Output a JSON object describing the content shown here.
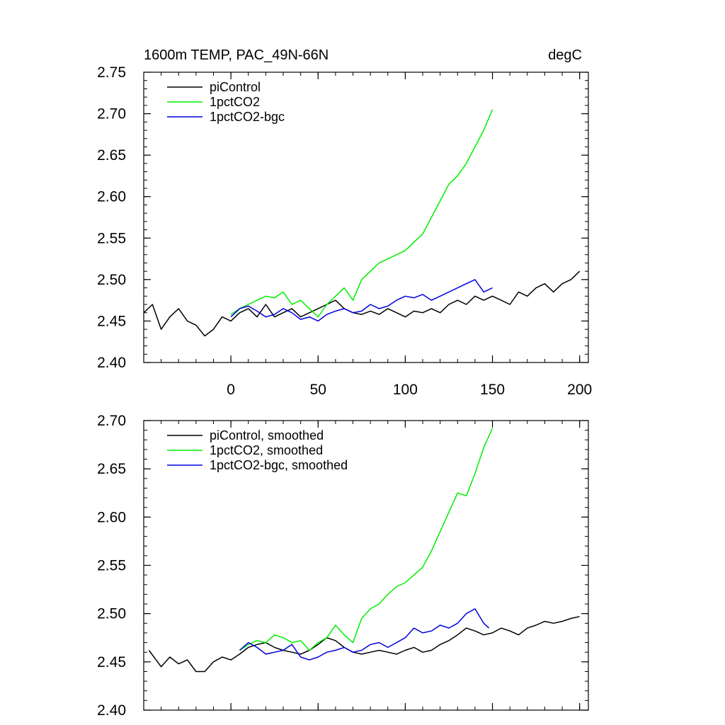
{
  "figure": {
    "title_left": "1600m TEMP, PAC_49N-66N",
    "title_right": "degC"
  },
  "chart_data": [
    {
      "type": "line",
      "title": "1600m TEMP, PAC_49N-66N",
      "units": "degC",
      "xlabel": "",
      "ylabel": "",
      "xlim": [
        -50,
        205
      ],
      "ylim": [
        2.4,
        2.75
      ],
      "x_ticks": [
        0,
        50,
        100,
        150,
        200
      ],
      "x_tick_labels": [
        "0",
        "50",
        "100",
        "150",
        "200"
      ],
      "y_ticks": [
        2.4,
        2.45,
        2.5,
        2.55,
        2.6,
        2.65,
        2.7,
        2.75
      ],
      "y_tick_labels": [
        "2.40",
        "2.45",
        "2.50",
        "2.55",
        "2.60",
        "2.65",
        "2.70",
        "2.75"
      ],
      "legend_position": "top-left",
      "series": [
        {
          "name": "piControl",
          "color": "#000000",
          "x": [
            -50,
            -45,
            -40,
            -35,
            -30,
            -25,
            -20,
            -15,
            -10,
            -5,
            0,
            5,
            10,
            15,
            20,
            25,
            30,
            35,
            40,
            45,
            50,
            55,
            60,
            65,
            70,
            75,
            80,
            85,
            90,
            95,
            100,
            105,
            110,
            115,
            120,
            125,
            130,
            135,
            140,
            145,
            150,
            155,
            160,
            165,
            170,
            175,
            180,
            185,
            190,
            195,
            200
          ],
          "values": [
            2.46,
            2.47,
            2.44,
            2.455,
            2.465,
            2.45,
            2.445,
            2.432,
            2.44,
            2.455,
            2.45,
            2.46,
            2.465,
            2.455,
            2.47,
            2.455,
            2.46,
            2.465,
            2.455,
            2.46,
            2.465,
            2.47,
            2.475,
            2.465,
            2.46,
            2.458,
            2.462,
            2.458,
            2.465,
            2.46,
            2.455,
            2.462,
            2.46,
            2.465,
            2.46,
            2.47,
            2.475,
            2.47,
            2.48,
            2.475,
            2.48,
            2.475,
            2.47,
            2.485,
            2.48,
            2.49,
            2.495,
            2.485,
            2.495,
            2.5,
            2.51
          ]
        },
        {
          "name": "1pctCO2",
          "color": "#00ee00",
          "x": [
            0,
            5,
            10,
            15,
            20,
            25,
            30,
            35,
            40,
            45,
            50,
            55,
            60,
            65,
            70,
            75,
            80,
            85,
            90,
            95,
            100,
            105,
            110,
            115,
            120,
            125,
            130,
            135,
            140,
            145,
            150
          ],
          "values": [
            2.458,
            2.465,
            2.47,
            2.475,
            2.48,
            2.478,
            2.485,
            2.47,
            2.475,
            2.465,
            2.455,
            2.47,
            2.48,
            2.49,
            2.475,
            2.5,
            2.51,
            2.52,
            2.525,
            2.53,
            2.535,
            2.545,
            2.555,
            2.575,
            2.595,
            2.615,
            2.625,
            2.64,
            2.66,
            2.68,
            2.705
          ]
        },
        {
          "name": "1pctCO2-bgc",
          "color": "#0000dd",
          "x": [
            0,
            5,
            10,
            15,
            20,
            25,
            30,
            35,
            40,
            45,
            50,
            55,
            60,
            65,
            70,
            75,
            80,
            85,
            90,
            95,
            100,
            105,
            110,
            115,
            120,
            125,
            130,
            135,
            140,
            145,
            150
          ],
          "values": [
            2.455,
            2.465,
            2.468,
            2.462,
            2.455,
            2.458,
            2.465,
            2.46,
            2.452,
            2.455,
            2.45,
            2.458,
            2.462,
            2.465,
            2.46,
            2.462,
            2.47,
            2.465,
            2.468,
            2.475,
            2.48,
            2.478,
            2.482,
            2.475,
            2.48,
            2.485,
            2.49,
            2.495,
            2.5,
            2.485,
            2.49
          ]
        }
      ]
    },
    {
      "type": "line",
      "title": "",
      "xlabel": "",
      "ylabel": "",
      "xlim": [
        -50,
        205
      ],
      "ylim": [
        2.4,
        2.7
      ],
      "x_ticks": [
        0,
        50,
        100,
        150,
        200
      ],
      "x_tick_labels": [],
      "y_ticks": [
        2.4,
        2.45,
        2.5,
        2.55,
        2.6,
        2.65,
        2.7
      ],
      "y_tick_labels": [
        "2.40",
        "2.45",
        "2.50",
        "2.55",
        "2.60",
        "2.65",
        "2.70"
      ],
      "legend_position": "top-left",
      "series": [
        {
          "name": "piControl, smoothed",
          "color": "#000000",
          "x": [
            -47,
            -40,
            -35,
            -30,
            -25,
            -20,
            -15,
            -10,
            -5,
            0,
            5,
            10,
            15,
            20,
            25,
            30,
            35,
            40,
            45,
            50,
            55,
            60,
            65,
            70,
            75,
            80,
            85,
            90,
            95,
            100,
            105,
            110,
            115,
            120,
            125,
            130,
            135,
            140,
            145,
            150,
            155,
            160,
            165,
            170,
            175,
            180,
            185,
            190,
            195,
            200
          ],
          "values": [
            2.462,
            2.445,
            2.455,
            2.448,
            2.452,
            2.44,
            2.44,
            2.45,
            2.455,
            2.452,
            2.458,
            2.465,
            2.468,
            2.47,
            2.465,
            2.462,
            2.46,
            2.458,
            2.462,
            2.468,
            2.475,
            2.472,
            2.465,
            2.46,
            2.458,
            2.46,
            2.462,
            2.46,
            2.458,
            2.462,
            2.465,
            2.46,
            2.462,
            2.468,
            2.472,
            2.478,
            2.485,
            2.482,
            2.478,
            2.48,
            2.485,
            2.482,
            2.478,
            2.485,
            2.488,
            2.492,
            2.49,
            2.492,
            2.495,
            2.497
          ]
        },
        {
          "name": "1pctCO2, smoothed",
          "color": "#00ee00",
          "x": [
            5,
            10,
            15,
            20,
            25,
            30,
            35,
            40,
            45,
            50,
            55,
            60,
            65,
            70,
            75,
            80,
            85,
            90,
            95,
            100,
            105,
            110,
            115,
            120,
            125,
            130,
            135,
            140,
            145,
            150
          ],
          "values": [
            2.462,
            2.468,
            2.472,
            2.47,
            2.478,
            2.475,
            2.47,
            2.472,
            2.462,
            2.47,
            2.475,
            2.488,
            2.478,
            2.47,
            2.495,
            2.505,
            2.51,
            2.52,
            2.528,
            2.532,
            2.54,
            2.548,
            2.565,
            2.585,
            2.605,
            2.625,
            2.622,
            2.645,
            2.672,
            2.692
          ]
        },
        {
          "name": "1pctCO2-bgc, smoothed",
          "color": "#0000dd",
          "x": [
            5,
            10,
            15,
            20,
            25,
            30,
            35,
            40,
            45,
            50,
            55,
            60,
            65,
            70,
            75,
            80,
            85,
            90,
            95,
            100,
            105,
            110,
            115,
            120,
            125,
            130,
            135,
            140,
            145,
            148
          ],
          "values": [
            2.462,
            2.47,
            2.465,
            2.458,
            2.46,
            2.462,
            2.468,
            2.455,
            2.452,
            2.455,
            2.46,
            2.462,
            2.465,
            2.46,
            2.462,
            2.468,
            2.47,
            2.465,
            2.47,
            2.475,
            2.485,
            2.48,
            2.482,
            2.488,
            2.485,
            2.49,
            2.5,
            2.505,
            2.49,
            2.485
          ]
        }
      ]
    }
  ]
}
